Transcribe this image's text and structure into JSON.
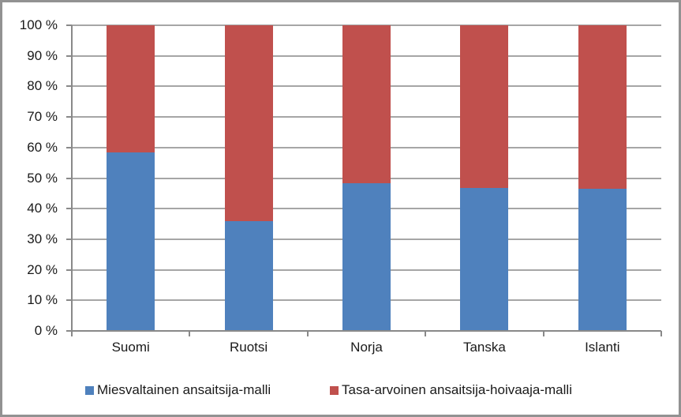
{
  "chart_data": {
    "type": "bar",
    "variant": "stacked-100-percent",
    "title": "",
    "xlabel": "",
    "ylabel": "",
    "categories": [
      "Suomi",
      "Ruotsi",
      "Norja",
      "Tanska",
      "Islanti"
    ],
    "series": [
      {
        "name": "Miesvaltainen ansaitsija-malli",
        "color": "#4F81BD",
        "values": [
          58.5,
          36,
          48.3,
          46.7,
          46.6
        ]
      },
      {
        "name": "Tasa-arvoinen ansaitsija-hoivaaja-malli",
        "color": "#C0504D",
        "values": [
          41.5,
          64,
          51.7,
          53.3,
          53.4
        ]
      }
    ],
    "ylim": [
      0,
      100
    ],
    "yticks": [
      0,
      10,
      20,
      30,
      40,
      50,
      60,
      70,
      80,
      90,
      100
    ],
    "ytick_suffix": " %",
    "grid": true,
    "legend_position": "bottom"
  },
  "colors": {
    "series_blue": "#4F81BD",
    "series_red": "#C0504D",
    "gridline": "#A6A6A6",
    "axis": "#898989",
    "frame_border": "#929292",
    "background": "#FFFFFF",
    "text": "#1A1A1A"
  }
}
